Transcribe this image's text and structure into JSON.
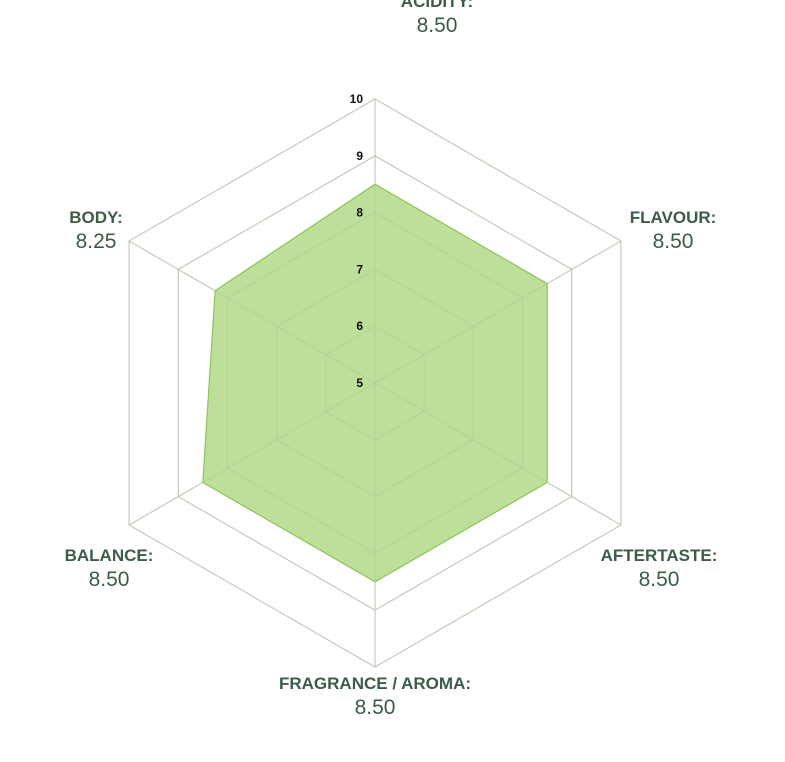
{
  "chart_data": {
    "type": "radar",
    "axes": [
      {
        "label": "ACIDITY:",
        "value": 8.5,
        "value_text": "8.50"
      },
      {
        "label": "FLAVOUR:",
        "value": 8.5,
        "value_text": "8.50"
      },
      {
        "label": "AFTERTASTE:",
        "value": 8.5,
        "value_text": "8.50"
      },
      {
        "label": "FRAGRANCE / AROMA:",
        "value": 8.5,
        "value_text": "8.50"
      },
      {
        "label": "BALANCE:",
        "value": 8.5,
        "value_text": "8.50"
      },
      {
        "label": "BODY:",
        "value": 8.25,
        "value_text": "8.25"
      }
    ],
    "series": [
      {
        "values": [
          8.5,
          8.5,
          8.5,
          8.5,
          8.5,
          8.25
        ]
      }
    ],
    "r_range": [
      5,
      10
    ],
    "ticks": [
      "5",
      "6",
      "7",
      "8",
      "9",
      "10"
    ],
    "grid": true,
    "colors": {
      "fill": "#b7db8f",
      "stroke": "#8cc45a",
      "grid": "#d4d4d4",
      "inner_grid": "#b0c9a0",
      "label": "#3d5c45"
    }
  }
}
